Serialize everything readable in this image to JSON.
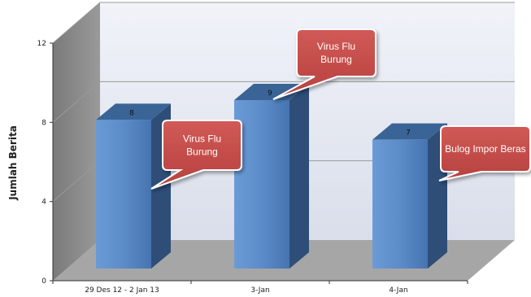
{
  "chart_data": {
    "type": "bar",
    "title": "",
    "xlabel": "",
    "ylabel": "Jumlah Berita",
    "ylim": [
      0,
      12
    ],
    "yticks": [
      0,
      4,
      8,
      12
    ],
    "categories": [
      "29 Des 12 - 2 Jan 13",
      "3-Jan",
      "4-Jan"
    ],
    "values": [
      8,
      9,
      7
    ],
    "data_labels": [
      "8",
      "9",
      "7"
    ],
    "grid": true,
    "style": "3d-column",
    "annotations": [
      {
        "category": "29 Des 12 - 2 Jan 13",
        "lines": [
          "Virus Flu",
          "Burung"
        ]
      },
      {
        "category": "3-Jan",
        "lines": [
          "Virus Flu",
          "Burung"
        ]
      },
      {
        "category": "4-Jan",
        "lines": [
          "Bulog Impor Beras"
        ]
      }
    ],
    "colors": {
      "bar_front": "#4f81bd",
      "bar_side": "#2e4e78",
      "bar_top": "#3a6496",
      "back_wall": "#e6eaf4",
      "side_wall": "#8c8c8c",
      "floor": "#a8a8a8",
      "callout": "#c0504d"
    }
  }
}
